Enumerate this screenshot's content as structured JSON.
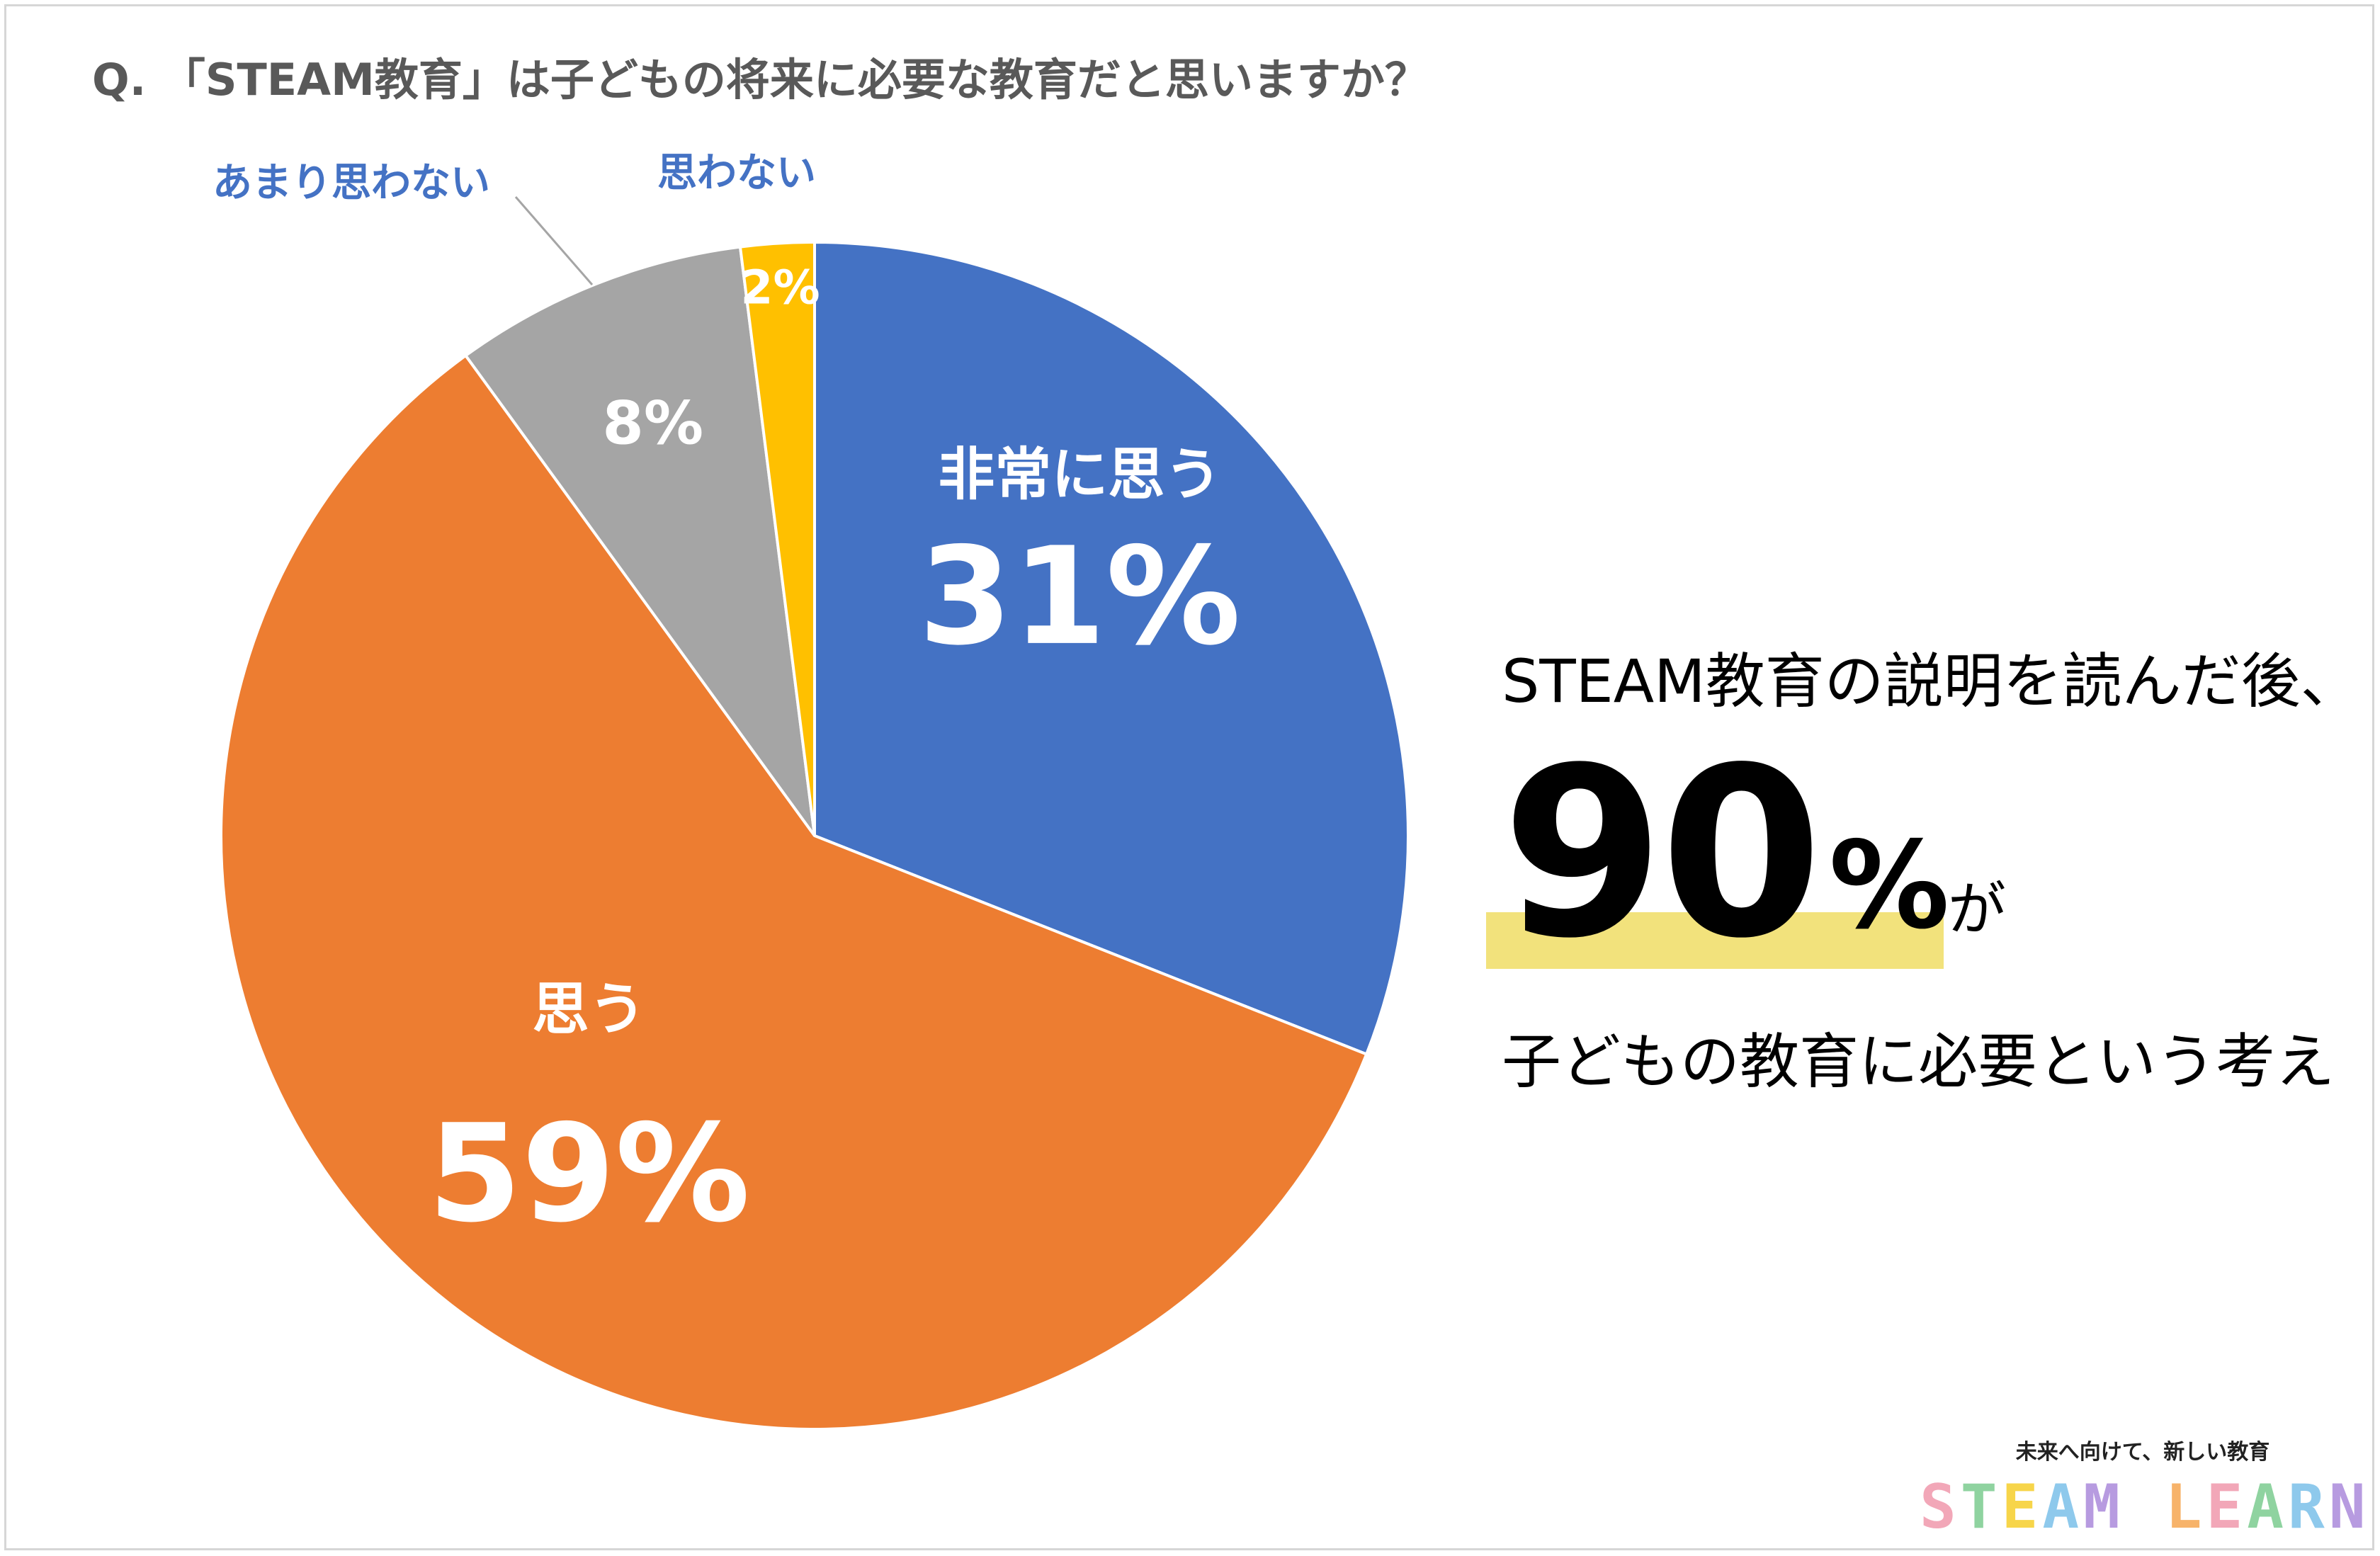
{
  "title": "Q. 「STEAM教育」は子どもの将来に必要な教育だと思いますか？",
  "chart_data": {
    "type": "pie",
    "title": "Q. 「STEAM教育」は子どもの将来に必要な教育だと思いますか？",
    "slices": [
      {
        "label": "非常に思う",
        "value": 31,
        "value_label": "31%",
        "color": "#4472c4"
      },
      {
        "label": "思う",
        "value": 59,
        "value_label": "59%",
        "color": "#ed7d31"
      },
      {
        "label": "あまり思わない",
        "value": 8,
        "value_label": "8%",
        "color": "#a5a5a5"
      },
      {
        "label": "思わない",
        "value": 2,
        "value_label": "2%",
        "color": "#ffc000"
      }
    ],
    "start_angle": "top (12 o'clock), clockwise"
  },
  "callout": {
    "line1": "STEAM教育の説明を読んだ後、",
    "big_value": "90",
    "big_unit": "%",
    "suffix": "が",
    "line3": "子どもの教育に必要という考え",
    "highlight_color": "#f2e27c"
  },
  "brand": {
    "tagline": "未来へ向けて、新しい教育",
    "letters": [
      {
        "char": "S",
        "color": "#f2a7b8"
      },
      {
        "char": "T",
        "color": "#8fd3a0"
      },
      {
        "char": "E",
        "color": "#f7d54a"
      },
      {
        "char": "A",
        "color": "#8ec9ec"
      },
      {
        "char": "M",
        "color": "#b79be0"
      },
      {
        "char": " ",
        "color": "#ffffff"
      },
      {
        "char": "L",
        "color": "#f7b36a"
      },
      {
        "char": "E",
        "color": "#f2a7b8"
      },
      {
        "char": "A",
        "color": "#8fd3a0"
      },
      {
        "char": "R",
        "color": "#8ec9ec"
      },
      {
        "char": "N",
        "color": "#b79be0"
      }
    ]
  },
  "colors": {
    "inside_label": "#ffffff",
    "outside_label": "#4472c4",
    "leader_line": "#a5a5a5",
    "title": "#595959"
  }
}
